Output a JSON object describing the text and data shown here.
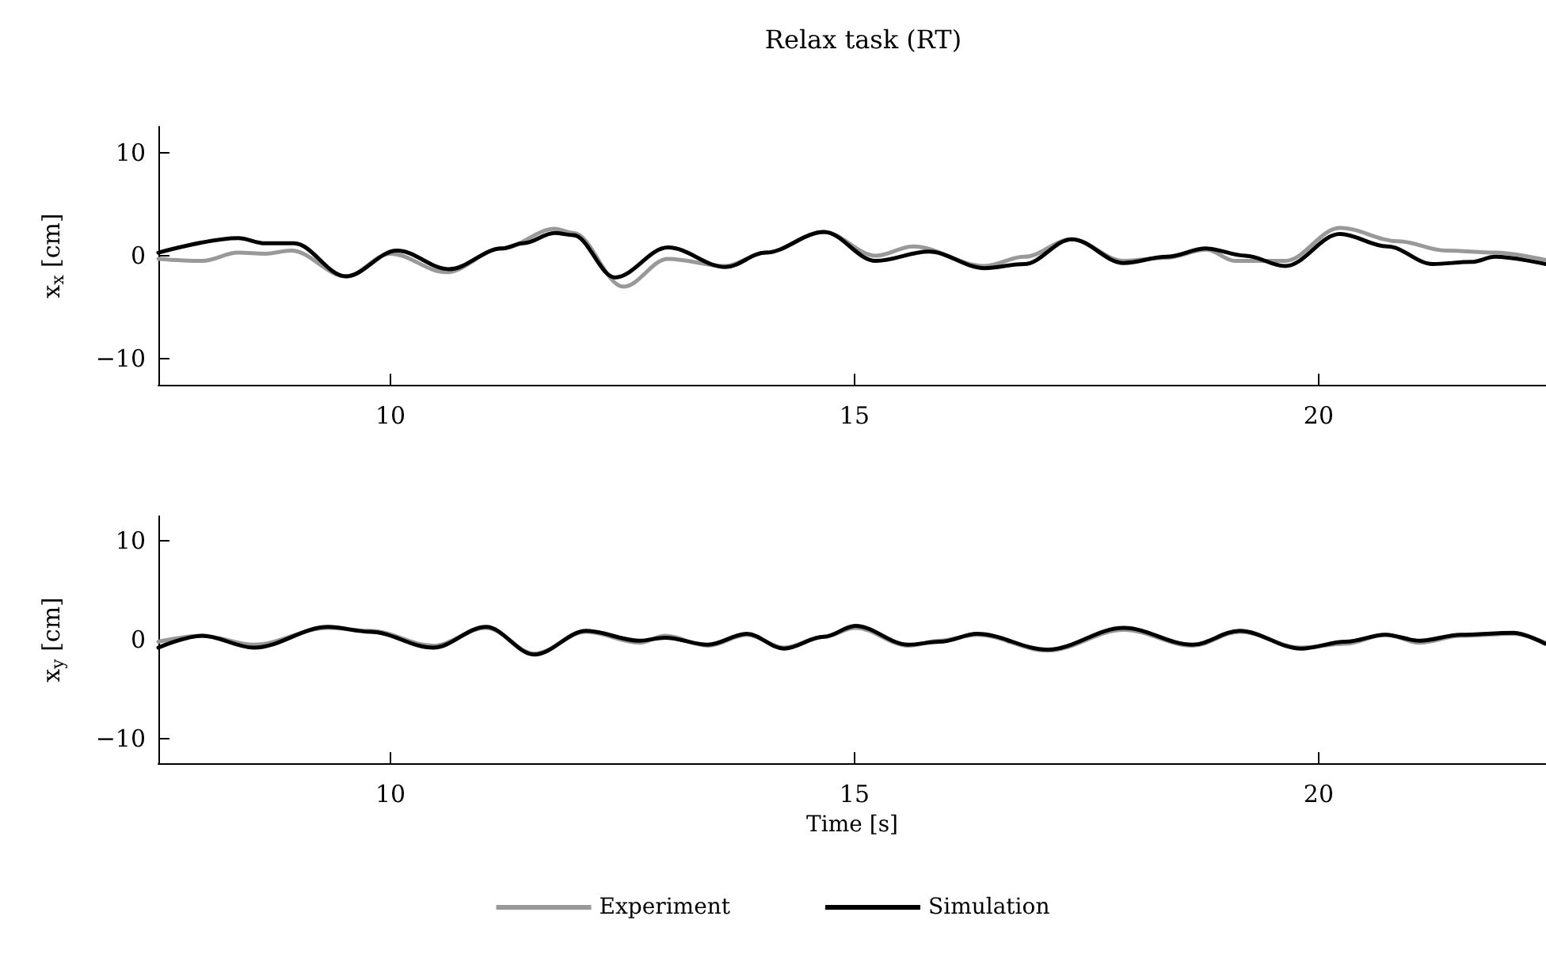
{
  "chart_data": [
    {
      "type": "line",
      "title": "Relax task (RT)",
      "ylabel": "x$_{x}$ [cm]",
      "xlim": [
        7.5,
        22.45
      ],
      "xticks": [
        10,
        15,
        20
      ],
      "ylim": [
        -12.5,
        12.5
      ],
      "yticks": [
        -10,
        0,
        10
      ],
      "grid": false,
      "legend": false,
      "marker": "none",
      "line_style": "solid",
      "series": [
        {
          "color": "#999999",
          "x": [
            7.5,
            7.97,
            8.36,
            8.65,
            8.93,
            9.52,
            10.0,
            10.6,
            11.2,
            11.77,
            11.97,
            12.51,
            12.99,
            13.61,
            14.04,
            14.67,
            15.23,
            15.63,
            16.4,
            16.83,
            17.34,
            17.9,
            18.36,
            18.79,
            19.1,
            19.64,
            20.23,
            20.86,
            21.37,
            21.9,
            22.44
          ],
          "values": [
            -0.3,
            -0.5,
            0.3,
            0.2,
            0.5,
            -2.0,
            0.2,
            -1.6,
            0.7,
            2.6,
            2.2,
            -3.0,
            -0.3,
            -1.0,
            0.3,
            2.3,
            0.0,
            0.9,
            -1.0,
            -0.1,
            1.6,
            -0.5,
            -0.2,
            0.6,
            -0.5,
            -0.5,
            2.7,
            1.4,
            0.5,
            0.3,
            -0.4
          ]
        },
        {
          "color": "#000000",
          "x": [
            7.5,
            8.36,
            8.65,
            8.96,
            9.52,
            10.07,
            10.63,
            11.2,
            11.43,
            11.77,
            11.97,
            12.42,
            12.99,
            13.61,
            14.04,
            14.67,
            15.23,
            15.8,
            16.4,
            16.83,
            17.34,
            17.9,
            18.36,
            18.79,
            19.21,
            19.64,
            20.23,
            20.74,
            21.23,
            21.65,
            21.9,
            22.44
          ],
          "values": [
            0.3,
            1.7,
            1.2,
            1.2,
            -2.0,
            0.5,
            -1.3,
            0.7,
            1.2,
            2.2,
            2.0,
            -2.1,
            0.8,
            -1.1,
            0.3,
            2.3,
            -0.5,
            0.4,
            -1.2,
            -0.8,
            1.6,
            -0.7,
            -0.1,
            0.7,
            0.0,
            -1.0,
            2.1,
            0.9,
            -0.8,
            -0.6,
            -0.1,
            -0.8
          ]
        }
      ]
    },
    {
      "type": "line",
      "xlabel": "Time [s]",
      "ylabel": "x$_{y}$ [cm]",
      "xlim": [
        7.5,
        22.45
      ],
      "xticks": [
        10,
        15,
        20
      ],
      "ylim": [
        -12.5,
        12.5
      ],
      "yticks": [
        -10,
        0,
        10
      ],
      "grid": false,
      "legend": "bottom",
      "marker": "none",
      "line_style": "solid",
      "series": [
        {
          "name": "Experiment",
          "color": "#999999",
          "x": [
            7.5,
            7.97,
            8.53,
            9.33,
            9.78,
            10.46,
            11.03,
            11.55,
            12.11,
            12.68,
            12.96,
            13.42,
            13.84,
            14.24,
            14.67,
            15.01,
            15.58,
            15.92,
            16.32,
            17.08,
            17.9,
            18.64,
            19.15,
            19.81,
            20.29,
            20.72,
            21.09,
            21.53,
            22.1,
            22.44
          ],
          "values": [
            -0.2,
            0.4,
            -0.5,
            1.2,
            0.9,
            -0.6,
            1.2,
            -1.4,
            0.8,
            -0.3,
            0.4,
            -0.6,
            0.5,
            -0.8,
            0.3,
            1.2,
            -0.6,
            -0.1,
            0.5,
            -1.1,
            1.0,
            -0.6,
            0.8,
            -0.8,
            -0.4,
            0.5,
            -0.3,
            0.4,
            0.6,
            -0.3
          ]
        },
        {
          "name": "Simulation",
          "color": "#000000",
          "x": [
            7.5,
            7.97,
            8.53,
            9.33,
            9.78,
            10.46,
            11.03,
            11.55,
            12.11,
            12.68,
            12.96,
            13.42,
            13.84,
            14.24,
            14.67,
            15.01,
            15.58,
            15.92,
            16.32,
            17.08,
            17.9,
            18.64,
            19.15,
            19.81,
            20.29,
            20.72,
            21.09,
            21.53,
            22.1,
            22.44
          ],
          "values": [
            -0.8,
            0.4,
            -0.8,
            1.3,
            0.8,
            -0.8,
            1.3,
            -1.5,
            0.9,
            -0.1,
            0.2,
            -0.5,
            0.6,
            -0.9,
            0.3,
            1.4,
            -0.5,
            -0.2,
            0.6,
            -1.0,
            1.2,
            -0.5,
            0.9,
            -0.9,
            -0.2,
            0.5,
            -0.1,
            0.5,
            0.7,
            -0.4
          ]
        }
      ]
    }
  ]
}
